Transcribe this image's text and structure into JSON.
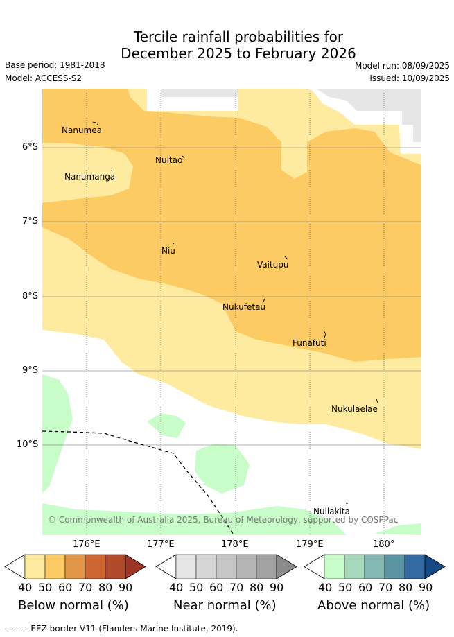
{
  "header": {
    "title_line1": "Tercile rainfall probabilities for",
    "title_line2": "December 2025 to February 2026",
    "base_period": "Base period: 1981-2018",
    "model": "Model: ACCESS-S2",
    "model_run": "Model run: 08/09/2025",
    "issued": "Issued: 10/09/2025"
  },
  "map": {
    "lat_labels": [
      "6°S",
      "7°S",
      "8°S",
      "9°S",
      "10°S"
    ],
    "lon_labels": [
      "176°E",
      "177°E",
      "178°E",
      "179°E",
      "180°"
    ],
    "places": [
      "Nanumea",
      "Nanumanga",
      "Nuitao",
      "Niu",
      "Vaitupu",
      "Nukufetau",
      "Funafuti",
      "Nukulaelae",
      "Nuilakita"
    ],
    "copyright": "© Commonwealth of Australia 2025, Bureau of Meteorology, supported by COSPPac"
  },
  "legend": {
    "ticks": [
      "40",
      "50",
      "60",
      "70",
      "80",
      "90"
    ],
    "below": {
      "title": "Below normal (%)",
      "colors": [
        "#ffeba0",
        "#fdcb63",
        "#e29648",
        "#cd6630",
        "#b04a2a",
        "#9c3526"
      ]
    },
    "near": {
      "title": "Near normal (%)",
      "colors": [
        "#e6e6e6",
        "#d6d6d6",
        "#c6c6c6",
        "#b4b4b4",
        "#a2a2a2",
        "#8a8a8a"
      ]
    },
    "above": {
      "title": "Above normal (%)",
      "colors": [
        "#c8fcc8",
        "#a6d8bc",
        "#84b8b3",
        "#5a94a3",
        "#336aa2",
        "#174a85"
      ]
    }
  },
  "footer": "-- -- -- EEZ border V11 (Flanders Marine Institute, 2019)."
}
